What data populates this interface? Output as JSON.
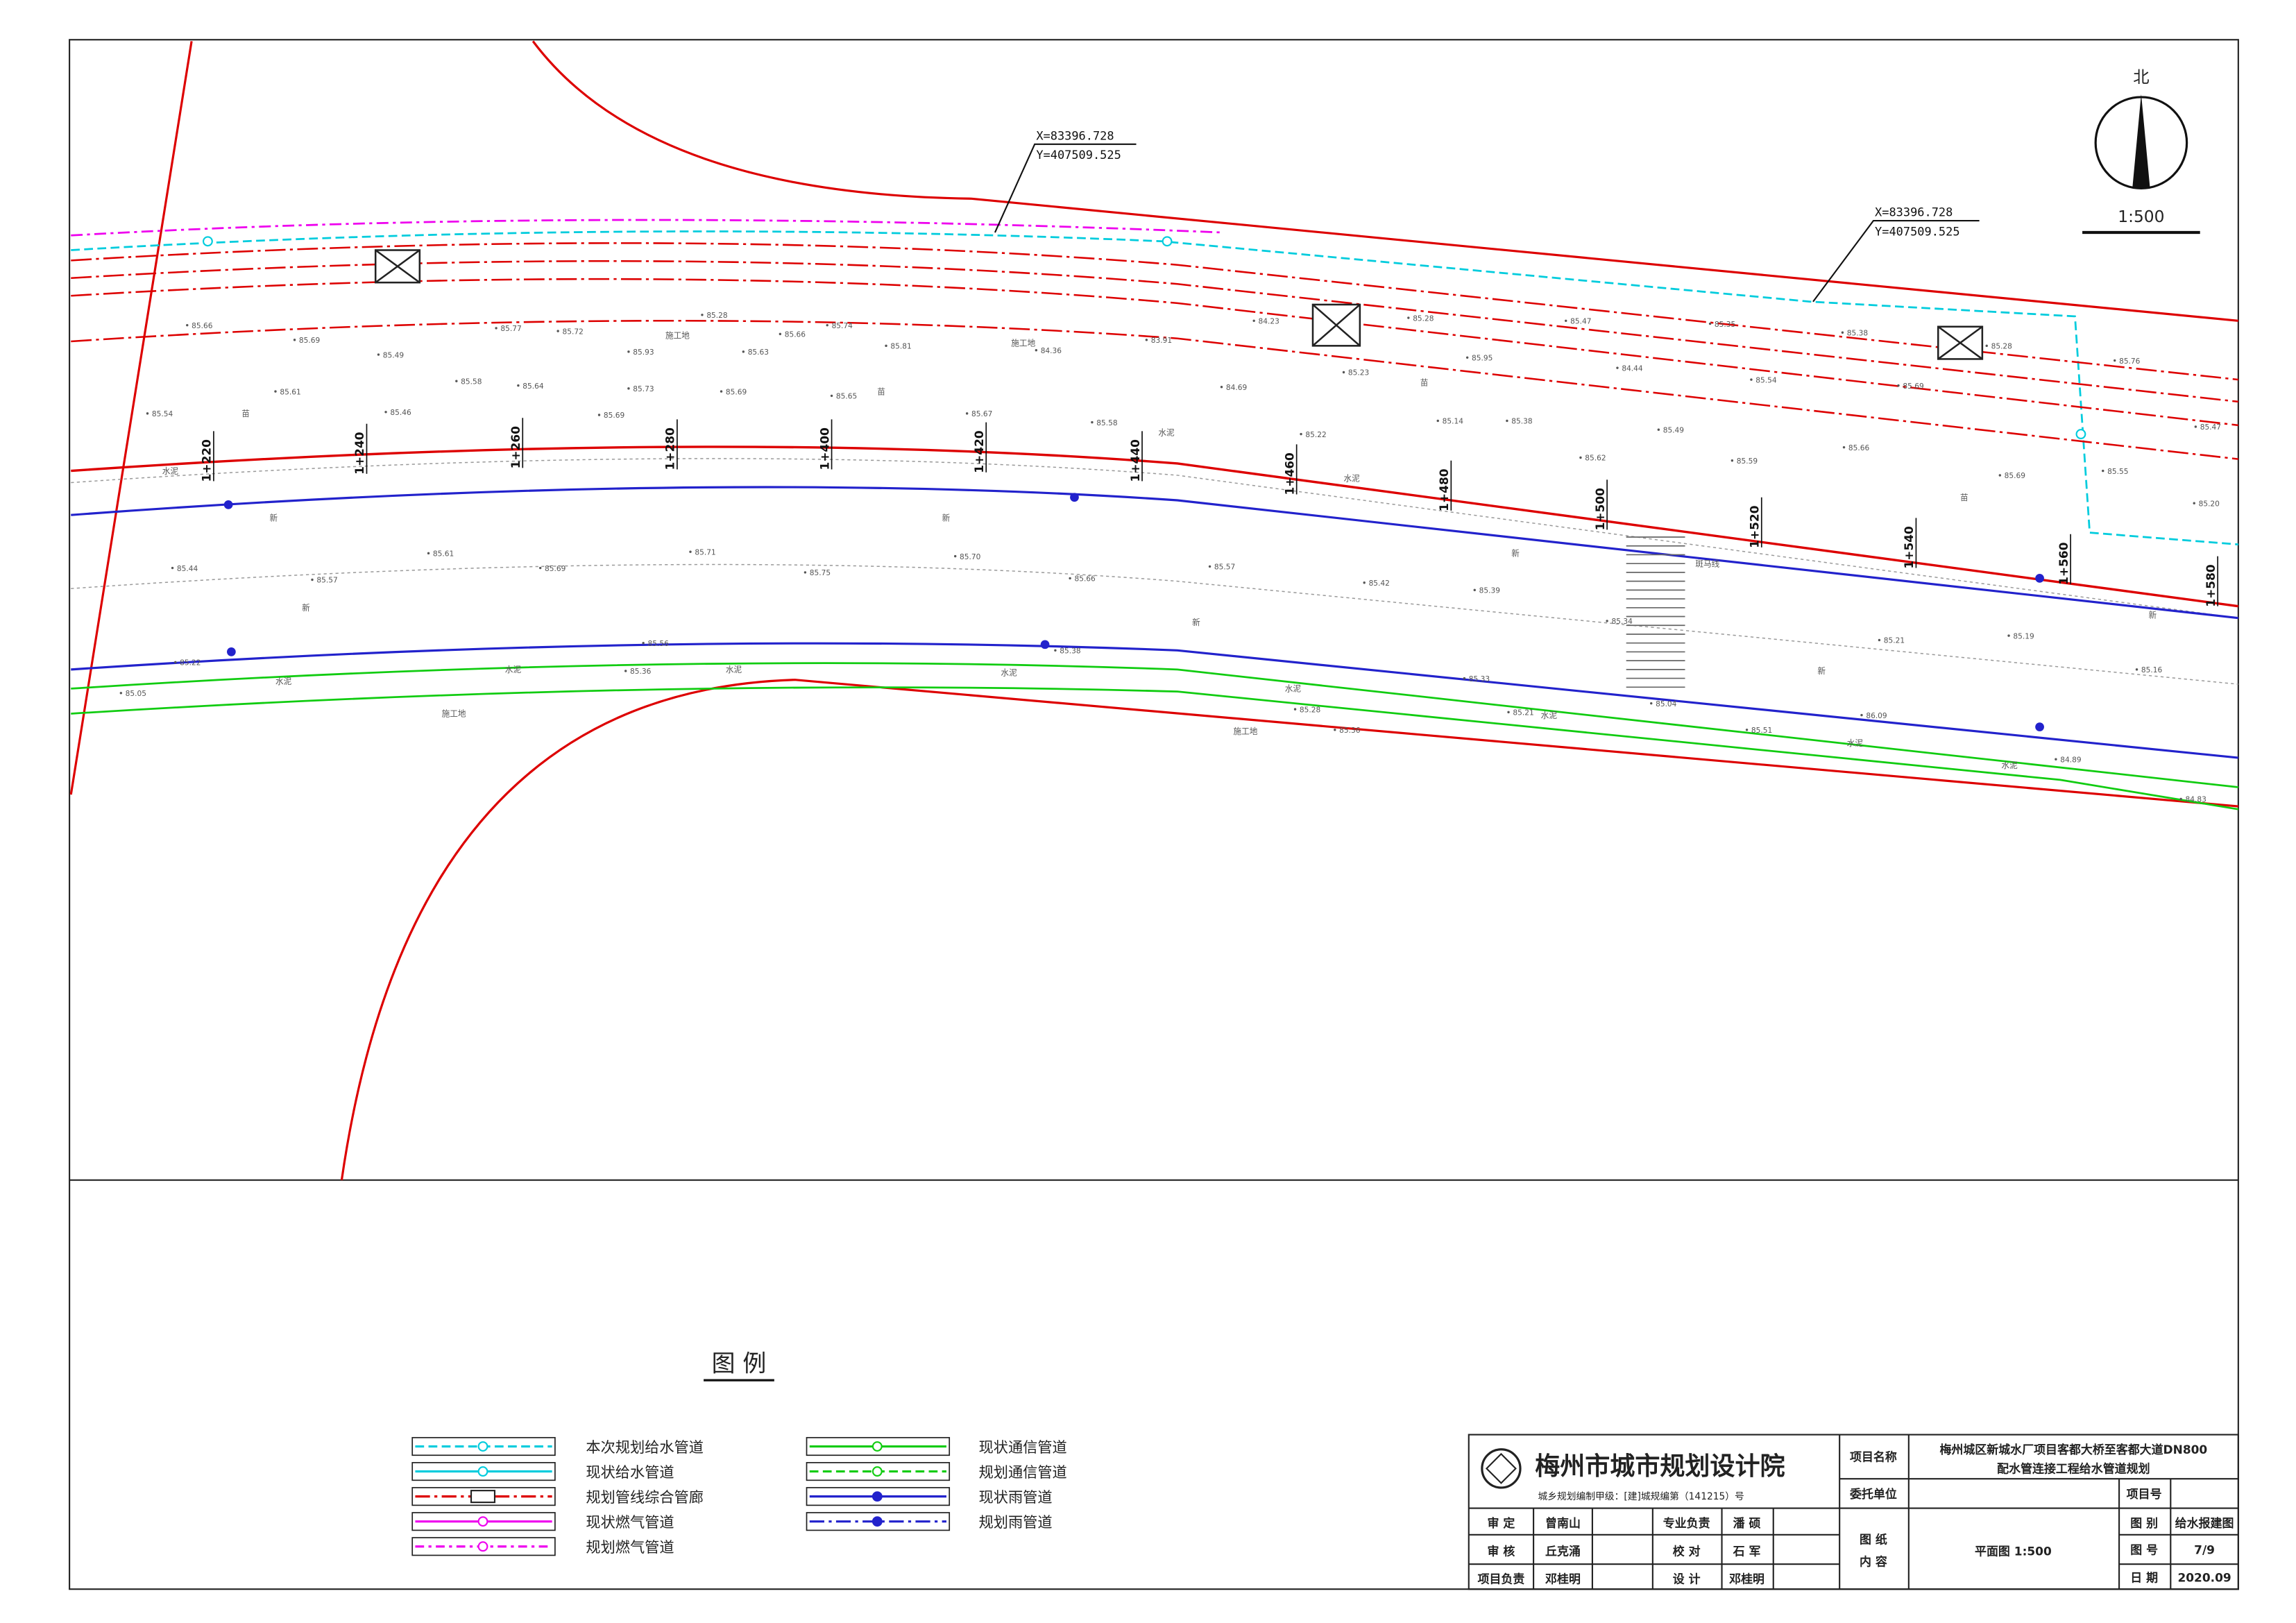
{
  "north_label": "北",
  "scale": "1:500",
  "coordinates": [
    {
      "x": "X=83396.728",
      "y": "Y=407509.525"
    },
    {
      "x": "X=83396.728",
      "y": "Y=407509.525"
    }
  ],
  "chainages": [
    "1+220",
    "1+240",
    "1+260",
    "1+280",
    "1+400",
    "1+420",
    "1+440",
    "1+460",
    "1+480",
    "1+500",
    "1+520",
    "1+540",
    "1+560",
    "1+580"
  ],
  "elevations": [
    "85.66",
    "85.69",
    "85.77",
    "85.72",
    "85.28",
    "85.74",
    "84.23",
    "85.28",
    "85.47",
    "85.35",
    "85.38",
    "85.28",
    "85.49",
    "85.93",
    "85.63",
    "85.66",
    "85.81",
    "84.36",
    "83.91",
    "85.95",
    "85.76",
    "85.58",
    "85.64",
    "85.73",
    "85.69",
    "85.65",
    "84.69",
    "85.23",
    "84.44",
    "85.54",
    "85.69",
    "85.61",
    "85.46",
    "85.54",
    "85.69",
    "85.67",
    "85.58",
    "85.14",
    "85.38",
    "85.49",
    "85.47",
    "85.22",
    "85.66",
    "85.62",
    "85.59",
    "85.55",
    "85.69",
    "85.20",
    "85.44",
    "85.57",
    "85.61",
    "85.69",
    "85.71",
    "85.75",
    "85.70",
    "85.66",
    "85.57",
    "85.42",
    "85.39",
    "85.34",
    "85.21",
    "85.19",
    "85.16",
    "85.22",
    "85.56",
    "85.05",
    "85.36",
    "85.38",
    "85.33",
    "85.21",
    "85.36",
    "85.28",
    "86.09",
    "85.51",
    "85.04",
    "84.89",
    "84.83"
  ],
  "site_labels": [
    "施工地",
    "施工地",
    "苗",
    "苗",
    "苗",
    "苗",
    "水泥",
    "水泥",
    "水泥",
    "新",
    "新",
    "新",
    "新",
    "新",
    "新",
    "新",
    "水泥",
    "水泥",
    "水泥",
    "水泥",
    "水泥",
    "施工地",
    "施工地",
    "斑马线",
    "水泥",
    "水泥",
    "水泥"
  ],
  "legend": {
    "title": "图 例",
    "items": [
      "本次规划给水管道",
      "现状给水管道",
      "规划管线综合管廊",
      "现状燃气管道",
      "规划燃气管道",
      "现状通信管道",
      "规划通信管道",
      "现状雨管道",
      "规划雨管道"
    ]
  },
  "title_block": {
    "institute": "梅州市城市规划设计院",
    "license": "城乡规划编制甲级：[建]城规编第（141215）号",
    "signatures": [
      [
        "审 定",
        "曾南山",
        "专业负责",
        "潘 硕"
      ],
      [
        "审 核",
        "丘克涌",
        "校 对",
        "石 军"
      ],
      [
        "项目负责",
        "邓桂明",
        "设 计",
        "邓桂明"
      ]
    ],
    "project_name_label": "项目名称",
    "project_name": [
      "梅州城区新城水厂项目客都大桥至客都大道DN800",
      "配水管连接工程给水管道规划"
    ],
    "client_label": "委托单位",
    "project_no_label": "项目号",
    "content_label": [
      "图 纸",
      "内 容"
    ],
    "content": "平面图 1:500",
    "drawing_class_label": "图 别",
    "drawing_class": "给水报建图",
    "drawing_no_label": "图 号",
    "drawing_no": "7/9",
    "date_label": "日 期",
    "date": "2020.09"
  }
}
